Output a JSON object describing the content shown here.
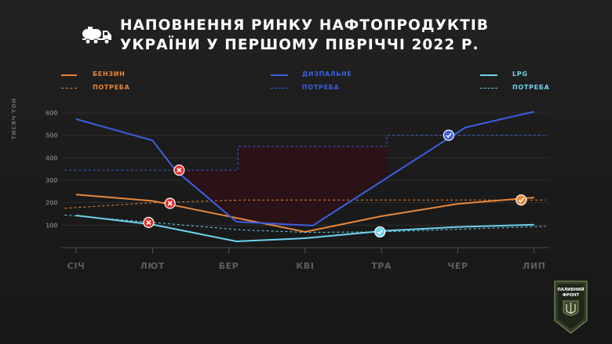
{
  "title": {
    "line1": "НАПОВНЕННЯ РИНКУ НАФТОПРОДУКТІВ",
    "line2": "УКРАЇНИ У ПЕРШОМУ ПІВРІЧЧІ 2022 Р."
  },
  "legend": [
    {
      "label": "БЕНЗИН",
      "color": "#e8873a",
      "style": "solid"
    },
    {
      "label": "ПОТРЕБА",
      "color": "#e8873a",
      "style": "dashed"
    },
    {
      "label": "ДИЗПАЛЬНЕ",
      "color": "#3d5fe0",
      "style": "solid"
    },
    {
      "label": "ПОТРЕБА",
      "color": "#3d5fe0",
      "style": "dashed"
    },
    {
      "label": "LPG",
      "color": "#6ed3ee",
      "style": "solid"
    },
    {
      "label": "ПОТРЕБА",
      "color": "#6ed3ee",
      "style": "dashed"
    }
  ],
  "badge": {
    "line1": "ПАЛИВНИЙ",
    "line2": "ФРОНТ",
    "icon": "trident-shield-icon"
  },
  "header_icon": "fuel-tanker-truck-icon",
  "chart_data": {
    "type": "line",
    "ylabel": "ТИСЯЧ ТОН",
    "ylim": [
      0,
      640
    ],
    "yticks": [
      100,
      200,
      300,
      400,
      500,
      600
    ],
    "categories": [
      "СІЧ",
      "ЛЮТ",
      "БЕР",
      "КВІ",
      "ТРА",
      "ЧЕР",
      "ЛИП"
    ],
    "grid": true,
    "legend_position": "top",
    "series": [
      {
        "name": "БЕНЗИН",
        "color": "#e8873a",
        "dash": false,
        "x": [
          0,
          1,
          3,
          4,
          5,
          6
        ],
        "y": [
          236,
          208,
          70,
          140,
          195,
          223
        ]
      },
      {
        "name": "ПОТРЕБА",
        "color": "#e8873a",
        "dash": true,
        "x": [
          -0.15,
          1,
          2.2,
          6.15
        ],
        "y": [
          175,
          200,
          212,
          212
        ]
      },
      {
        "name": "ДИЗПАЛЬНЕ",
        "color": "#3d5fe0",
        "dash": false,
        "x": [
          0,
          1,
          1.3,
          2.1,
          3.1,
          5.1,
          6
        ],
        "y": [
          572,
          477,
          345,
          115,
          98,
          535,
          605
        ]
      },
      {
        "name": "ПОТРЕБА",
        "color": "#3d5fe0",
        "dash": true,
        "x": [
          -0.15,
          2.12,
          2.12,
          4.07,
          4.07,
          6.15
        ],
        "y": [
          345,
          345,
          450,
          450,
          500,
          500
        ]
      },
      {
        "name": "LPG",
        "color": "#6ed3ee",
        "dash": false,
        "x": [
          0,
          1,
          2.1,
          3,
          4.05,
          5,
          6
        ],
        "y": [
          143,
          103,
          28,
          42,
          75,
          92,
          102
        ]
      },
      {
        "name": "ПОТРЕБА",
        "color": "#6ed3ee",
        "dash": true,
        "x": [
          -0.15,
          1,
          2.2,
          3,
          4,
          6.15
        ],
        "y": [
          145,
          112,
          78,
          68,
          70,
          95
        ]
      }
    ],
    "deficit_area": {
      "color": "#2a1216",
      "upper": "ПОТРЕБА ДИЗПАЛЬНЕ",
      "lower": "ДИЗПАЛЬНЕ",
      "x_range": [
        1.38,
        4.07
      ]
    },
    "markers": [
      {
        "kind": "deficit",
        "x": 1.35,
        "y": 345,
        "color": "#e0322f"
      },
      {
        "kind": "deficit",
        "x": 1.23,
        "y": 197,
        "color": "#e0322f"
      },
      {
        "kind": "deficit",
        "x": 0.95,
        "y": 112,
        "color": "#e0322f"
      },
      {
        "kind": "ok",
        "x": 4.88,
        "y": 500,
        "color": "#3d5fe0"
      },
      {
        "kind": "ok",
        "x": 3.98,
        "y": 70,
        "color": "#6ed3ee"
      },
      {
        "kind": "ok",
        "x": 5.83,
        "y": 212,
        "color": "#e8873a"
      }
    ]
  }
}
